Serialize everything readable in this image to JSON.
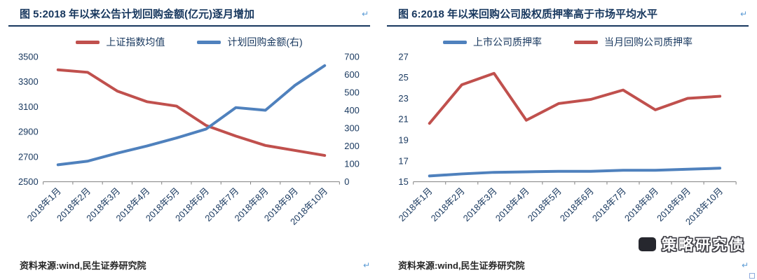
{
  "page": {
    "background": "#ffffff"
  },
  "figure5": {
    "source": "资料来源:wind,民生证券研究院"
  },
  "figure6": {
    "source": "资料来源:wind,民生证券研究院"
  },
  "watermark": {
    "text": "策略研究债"
  },
  "formatting_marks": {
    "line_break": "↵"
  },
  "colors": {
    "title_navy": "#17375E",
    "series_red": "#C0504D",
    "series_blue": "#4F81BD"
  },
  "chart_data": [
    {
      "type": "line",
      "title": "图 5:2018 年以来公告计划回购金额(亿元)逐月增加",
      "categories": [
        "2018年1月",
        "2018年2月",
        "2018年3月",
        "2018年4月",
        "2018年5月",
        "2018年6月",
        "2018年7月",
        "2018年8月",
        "2018年9月",
        "2018年10月"
      ],
      "series": [
        {
          "name": "上证指数均值",
          "axis": "left",
          "color": "#C0504D",
          "values": [
            3395,
            3375,
            3225,
            3140,
            3105,
            2950,
            2865,
            2790,
            2750,
            2710
          ]
        },
        {
          "name": "计划回购金额(右)",
          "axis": "right",
          "color": "#4F81BD",
          "values": [
            95,
            115,
            160,
            200,
            245,
            295,
            415,
            400,
            540,
            650
          ]
        }
      ],
      "axes": {
        "left": {
          "min": 2500,
          "max": 3500,
          "ticks": [
            2500,
            2700,
            2900,
            3100,
            3300,
            3500
          ]
        },
        "right": {
          "min": 0,
          "max": 700,
          "ticks": [
            0,
            100,
            200,
            300,
            400,
            500,
            600,
            700
          ]
        }
      },
      "grid": false,
      "legend_position": "top"
    },
    {
      "type": "line",
      "title": "图 6:2018 年以来回购公司股权质押率高于市场平均水平",
      "categories": [
        "2018年1月",
        "2018年2月",
        "2018年3月",
        "2018年4月",
        "2018年5月",
        "2018年6月",
        "2018年7月",
        "2018年8月",
        "2018年9月",
        "2018年10月"
      ],
      "series": [
        {
          "name": "上市公司质押率",
          "axis": "left",
          "color": "#4F81BD",
          "values": [
            15.55,
            15.75,
            15.9,
            15.95,
            16.0,
            16.0,
            16.1,
            16.1,
            16.2,
            16.3
          ]
        },
        {
          "name": "当月回购公司质押率",
          "axis": "left",
          "color": "#C0504D",
          "values": [
            20.6,
            24.3,
            25.4,
            20.9,
            22.5,
            22.9,
            23.8,
            21.9,
            23.0,
            23.2
          ]
        }
      ],
      "axes": {
        "left": {
          "min": 15,
          "max": 27,
          "ticks": [
            15,
            17,
            19,
            21,
            23,
            25,
            27
          ]
        }
      },
      "grid": false,
      "legend_position": "top"
    }
  ]
}
